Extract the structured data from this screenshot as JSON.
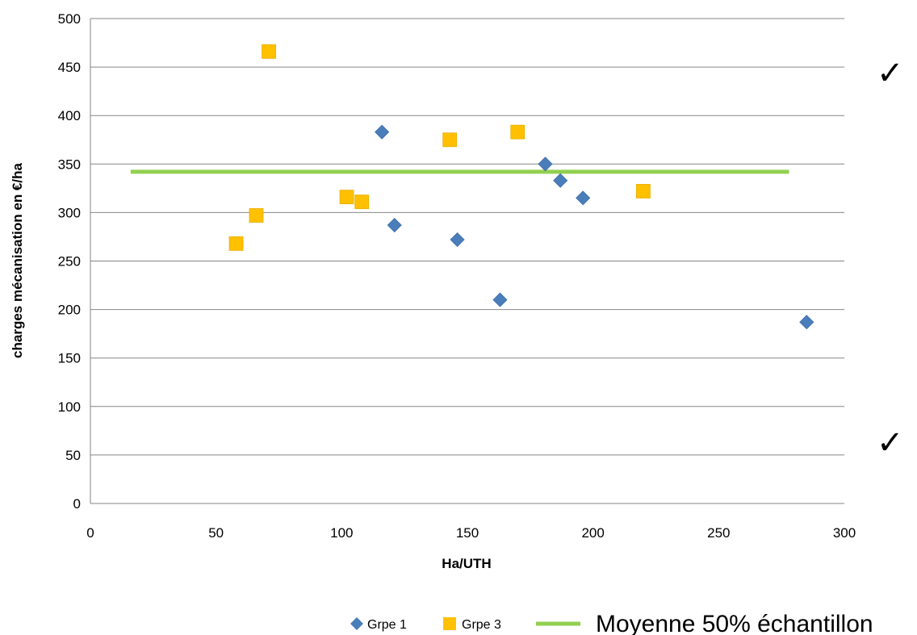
{
  "chart_data": {
    "type": "scatter",
    "xlabel": "Ha/UTH",
    "ylabel": "charges mécanisation en €/ha",
    "xlim": [
      0,
      300
    ],
    "ylim": [
      0,
      500
    ],
    "xticks": [
      0,
      50,
      100,
      150,
      200,
      250,
      300
    ],
    "yticks": [
      0,
      50,
      100,
      150,
      200,
      250,
      300,
      350,
      400,
      450,
      500
    ],
    "grid": "horizontal",
    "legend_position": "bottom-right",
    "series": [
      {
        "name": "Grpe 1",
        "marker": "diamond",
        "color": "#4A7EBB",
        "points": [
          {
            "x": 116,
            "y": 383
          },
          {
            "x": 121,
            "y": 287
          },
          {
            "x": 146,
            "y": 272
          },
          {
            "x": 163,
            "y": 210
          },
          {
            "x": 181,
            "y": 350
          },
          {
            "x": 187,
            "y": 333
          },
          {
            "x": 196,
            "y": 315
          },
          {
            "x": 285,
            "y": 187
          }
        ]
      },
      {
        "name": "Grpe 3",
        "marker": "square",
        "color": "#FFC000",
        "points": [
          {
            "x": 58,
            "y": 268
          },
          {
            "x": 66,
            "y": 297
          },
          {
            "x": 71,
            "y": 466
          },
          {
            "x": 102,
            "y": 316
          },
          {
            "x": 108,
            "y": 311
          },
          {
            "x": 143,
            "y": 375
          },
          {
            "x": 170,
            "y": 383
          },
          {
            "x": 220,
            "y": 322
          }
        ]
      },
      {
        "name": "Moyenne 50% échantillon",
        "marker": "line",
        "color": "#92D050",
        "x": [
          16,
          278
        ],
        "y": [
          342,
          342
        ]
      }
    ]
  },
  "annotations": {
    "checkmark_top": "✓",
    "checkmark_bottom": "✓"
  }
}
